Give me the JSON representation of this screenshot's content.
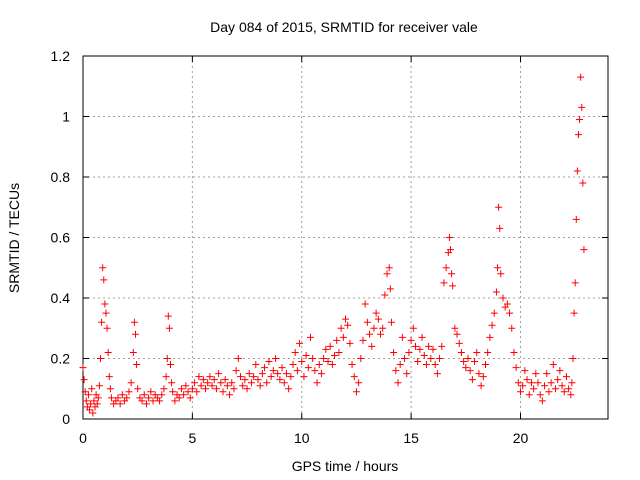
{
  "chart_data": {
    "type": "scatter",
    "title": "Day 084 of 2015, SRMTID for receiver vale",
    "xlabel": "GPS time / hours",
    "ylabel": "SRMTID / TECUs",
    "xlim": [
      0,
      24
    ],
    "ylim": [
      0,
      1.2
    ],
    "grid": true,
    "marker": "+",
    "color": "#ff0000",
    "x_ticks": [
      {
        "value": 0,
        "label": "0"
      },
      {
        "value": 5,
        "label": "5"
      },
      {
        "value": 10,
        "label": "10"
      },
      {
        "value": 15,
        "label": "15"
      },
      {
        "value": 20,
        "label": "20"
      }
    ],
    "y_ticks": [
      {
        "value": 0,
        "label": "0"
      },
      {
        "value": 0.2,
        "label": "0.2"
      },
      {
        "value": 0.4,
        "label": "0.4"
      },
      {
        "value": 0.6,
        "label": "0.6"
      },
      {
        "value": 0.8,
        "label": "0.8"
      },
      {
        "value": 1.0,
        "label": "1"
      },
      {
        "value": 1.2,
        "label": "1.2"
      }
    ],
    "series": [
      {
        "name": "SRMTID",
        "points": [
          [
            0.0,
            0.17
          ],
          [
            0.05,
            0.13
          ],
          [
            0.1,
            0.09
          ],
          [
            0.15,
            0.06
          ],
          [
            0.2,
            0.04
          ],
          [
            0.25,
            0.08
          ],
          [
            0.3,
            0.03
          ],
          [
            0.35,
            0.05
          ],
          [
            0.4,
            0.1
          ],
          [
            0.45,
            0.02
          ],
          [
            0.5,
            0.06
          ],
          [
            0.55,
            0.04
          ],
          [
            0.6,
            0.08
          ],
          [
            0.65,
            0.05
          ],
          [
            0.7,
            0.07
          ],
          [
            0.75,
            0.11
          ],
          [
            0.8,
            0.2
          ],
          [
            0.85,
            0.32
          ],
          [
            0.9,
            0.5
          ],
          [
            0.95,
            0.46
          ],
          [
            1.0,
            0.38
          ],
          [
            1.05,
            0.35
          ],
          [
            1.1,
            0.3
          ],
          [
            1.15,
            0.22
          ],
          [
            1.2,
            0.14
          ],
          [
            1.25,
            0.1
          ],
          [
            1.3,
            0.07
          ],
          [
            1.4,
            0.05
          ],
          [
            1.5,
            0.06
          ],
          [
            1.6,
            0.07
          ],
          [
            1.7,
            0.05
          ],
          [
            1.8,
            0.08
          ],
          [
            1.9,
            0.06
          ],
          [
            2.0,
            0.07
          ],
          [
            2.1,
            0.09
          ],
          [
            2.2,
            0.12
          ],
          [
            2.3,
            0.22
          ],
          [
            2.35,
            0.32
          ],
          [
            2.4,
            0.28
          ],
          [
            2.45,
            0.18
          ],
          [
            2.5,
            0.1
          ],
          [
            2.6,
            0.07
          ],
          [
            2.7,
            0.06
          ],
          [
            2.8,
            0.08
          ],
          [
            2.9,
            0.05
          ],
          [
            3.0,
            0.07
          ],
          [
            3.1,
            0.09
          ],
          [
            3.2,
            0.06
          ],
          [
            3.3,
            0.08
          ],
          [
            3.4,
            0.07
          ],
          [
            3.5,
            0.06
          ],
          [
            3.6,
            0.08
          ],
          [
            3.7,
            0.1
          ],
          [
            3.8,
            0.14
          ],
          [
            3.85,
            0.2
          ],
          [
            3.9,
            0.34
          ],
          [
            3.95,
            0.3
          ],
          [
            4.0,
            0.18
          ],
          [
            4.05,
            0.12
          ],
          [
            4.1,
            0.09
          ],
          [
            4.2,
            0.06
          ],
          [
            4.3,
            0.08
          ],
          [
            4.4,
            0.07
          ],
          [
            4.5,
            0.1
          ],
          [
            4.6,
            0.08
          ],
          [
            4.7,
            0.11
          ],
          [
            4.8,
            0.09
          ],
          [
            4.9,
            0.07
          ],
          [
            5.0,
            0.1
          ],
          [
            5.1,
            0.12
          ],
          [
            5.2,
            0.09
          ],
          [
            5.3,
            0.14
          ],
          [
            5.4,
            0.11
          ],
          [
            5.5,
            0.13
          ],
          [
            5.6,
            0.1
          ],
          [
            5.7,
            0.12
          ],
          [
            5.8,
            0.14
          ],
          [
            5.9,
            0.11
          ],
          [
            6.0,
            0.13
          ],
          [
            6.1,
            0.1
          ],
          [
            6.2,
            0.15
          ],
          [
            6.3,
            0.12
          ],
          [
            6.4,
            0.09
          ],
          [
            6.5,
            0.13
          ],
          [
            6.6,
            0.11
          ],
          [
            6.7,
            0.08
          ],
          [
            6.8,
            0.12
          ],
          [
            6.9,
            0.1
          ],
          [
            7.0,
            0.16
          ],
          [
            7.1,
            0.2
          ],
          [
            7.2,
            0.14
          ],
          [
            7.3,
            0.11
          ],
          [
            7.4,
            0.13
          ],
          [
            7.5,
            0.1
          ],
          [
            7.6,
            0.15
          ],
          [
            7.7,
            0.12
          ],
          [
            7.8,
            0.14
          ],
          [
            7.9,
            0.18
          ],
          [
            8.0,
            0.13
          ],
          [
            8.1,
            0.11
          ],
          [
            8.2,
            0.15
          ],
          [
            8.3,
            0.17
          ],
          [
            8.4,
            0.12
          ],
          [
            8.5,
            0.19
          ],
          [
            8.6,
            0.14
          ],
          [
            8.7,
            0.16
          ],
          [
            8.8,
            0.2
          ],
          [
            8.9,
            0.15
          ],
          [
            9.0,
            0.13
          ],
          [
            9.1,
            0.17
          ],
          [
            9.2,
            0.12
          ],
          [
            9.3,
            0.15
          ],
          [
            9.4,
            0.1
          ],
          [
            9.5,
            0.14
          ],
          [
            9.6,
            0.18
          ],
          [
            9.7,
            0.22
          ],
          [
            9.8,
            0.16
          ],
          [
            9.9,
            0.25
          ],
          [
            10.0,
            0.19
          ],
          [
            10.1,
            0.14
          ],
          [
            10.2,
            0.21
          ],
          [
            10.3,
            0.17
          ],
          [
            10.4,
            0.27
          ],
          [
            10.5,
            0.2
          ],
          [
            10.6,
            0.16
          ],
          [
            10.7,
            0.12
          ],
          [
            10.8,
            0.18
          ],
          [
            10.9,
            0.15
          ],
          [
            11.0,
            0.2
          ],
          [
            11.1,
            0.23
          ],
          [
            11.2,
            0.19
          ],
          [
            11.3,
            0.24
          ],
          [
            11.4,
            0.18
          ],
          [
            11.5,
            0.21
          ],
          [
            11.6,
            0.26
          ],
          [
            11.7,
            0.22
          ],
          [
            11.8,
            0.3
          ],
          [
            11.9,
            0.27
          ],
          [
            12.0,
            0.33
          ],
          [
            12.1,
            0.31
          ],
          [
            12.2,
            0.25
          ],
          [
            12.3,
            0.18
          ],
          [
            12.4,
            0.14
          ],
          [
            12.5,
            0.09
          ],
          [
            12.6,
            0.12
          ],
          [
            12.7,
            0.2
          ],
          [
            12.8,
            0.26
          ],
          [
            12.9,
            0.38
          ],
          [
            13.0,
            0.32
          ],
          [
            13.1,
            0.28
          ],
          [
            13.2,
            0.24
          ],
          [
            13.3,
            0.3
          ],
          [
            13.4,
            0.35
          ],
          [
            13.5,
            0.33
          ],
          [
            13.6,
            0.28
          ],
          [
            13.7,
            0.3
          ],
          [
            13.8,
            0.41
          ],
          [
            13.9,
            0.48
          ],
          [
            14.0,
            0.5
          ],
          [
            14.05,
            0.43
          ],
          [
            14.1,
            0.32
          ],
          [
            14.2,
            0.22
          ],
          [
            14.3,
            0.16
          ],
          [
            14.4,
            0.12
          ],
          [
            14.5,
            0.18
          ],
          [
            14.6,
            0.27
          ],
          [
            14.7,
            0.2
          ],
          [
            14.8,
            0.15
          ],
          [
            14.9,
            0.22
          ],
          [
            15.0,
            0.26
          ],
          [
            15.1,
            0.3
          ],
          [
            15.2,
            0.24
          ],
          [
            15.3,
            0.19
          ],
          [
            15.4,
            0.23
          ],
          [
            15.5,
            0.27
          ],
          [
            15.6,
            0.21
          ],
          [
            15.7,
            0.18
          ],
          [
            15.8,
            0.24
          ],
          [
            15.9,
            0.2
          ],
          [
            16.0,
            0.23
          ],
          [
            16.1,
            0.18
          ],
          [
            16.2,
            0.15
          ],
          [
            16.3,
            0.2
          ],
          [
            16.4,
            0.24
          ],
          [
            16.5,
            0.45
          ],
          [
            16.6,
            0.5
          ],
          [
            16.7,
            0.55
          ],
          [
            16.75,
            0.6
          ],
          [
            16.8,
            0.56
          ],
          [
            16.85,
            0.48
          ],
          [
            16.9,
            0.44
          ],
          [
            17.0,
            0.3
          ],
          [
            17.1,
            0.28
          ],
          [
            17.2,
            0.25
          ],
          [
            17.3,
            0.22
          ],
          [
            17.4,
            0.19
          ],
          [
            17.5,
            0.17
          ],
          [
            17.6,
            0.2
          ],
          [
            17.7,
            0.16
          ],
          [
            17.8,
            0.13
          ],
          [
            17.9,
            0.19
          ],
          [
            18.0,
            0.22
          ],
          [
            18.1,
            0.15
          ],
          [
            18.2,
            0.11
          ],
          [
            18.3,
            0.14
          ],
          [
            18.4,
            0.18
          ],
          [
            18.5,
            0.22
          ],
          [
            18.6,
            0.27
          ],
          [
            18.7,
            0.31
          ],
          [
            18.8,
            0.35
          ],
          [
            18.9,
            0.42
          ],
          [
            18.95,
            0.5
          ],
          [
            19.0,
            0.7
          ],
          [
            19.05,
            0.63
          ],
          [
            19.1,
            0.48
          ],
          [
            19.2,
            0.4
          ],
          [
            19.3,
            0.37
          ],
          [
            19.4,
            0.38
          ],
          [
            19.5,
            0.35
          ],
          [
            19.6,
            0.3
          ],
          [
            19.7,
            0.22
          ],
          [
            19.8,
            0.17
          ],
          [
            19.9,
            0.12
          ],
          [
            20.0,
            0.09
          ],
          [
            20.1,
            0.11
          ],
          [
            20.2,
            0.16
          ],
          [
            20.3,
            0.13
          ],
          [
            20.4,
            0.08
          ],
          [
            20.5,
            0.12
          ],
          [
            20.6,
            0.1
          ],
          [
            20.7,
            0.15
          ],
          [
            20.8,
            0.12
          ],
          [
            20.9,
            0.08
          ],
          [
            21.0,
            0.06
          ],
          [
            21.1,
            0.11
          ],
          [
            21.2,
            0.15
          ],
          [
            21.3,
            0.09
          ],
          [
            21.4,
            0.12
          ],
          [
            21.5,
            0.18
          ],
          [
            21.6,
            0.1
          ],
          [
            21.7,
            0.13
          ],
          [
            21.8,
            0.16
          ],
          [
            21.9,
            0.11
          ],
          [
            22.0,
            0.09
          ],
          [
            22.1,
            0.14
          ],
          [
            22.2,
            0.1
          ],
          [
            22.3,
            0.08
          ],
          [
            22.35,
            0.12
          ],
          [
            22.4,
            0.2
          ],
          [
            22.45,
            0.35
          ],
          [
            22.5,
            0.45
          ],
          [
            22.55,
            0.66
          ],
          [
            22.6,
            0.82
          ],
          [
            22.65,
            0.94
          ],
          [
            22.7,
            0.99
          ],
          [
            22.75,
            1.13
          ],
          [
            22.8,
            1.03
          ],
          [
            22.85,
            0.78
          ],
          [
            22.9,
            0.56
          ]
        ]
      }
    ]
  }
}
